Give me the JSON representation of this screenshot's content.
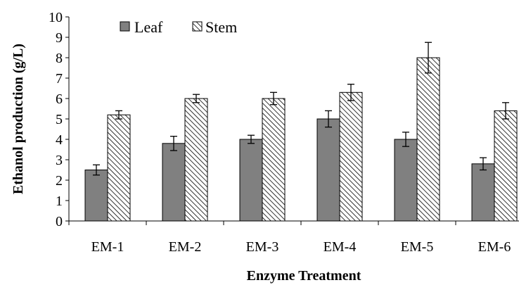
{
  "chart_data": {
    "type": "bar",
    "title": "",
    "xlabel": "Enzyme Treatment",
    "ylabel": "Ethanol production (g/L)",
    "categories": [
      "EM-1",
      "EM-2",
      "EM-3",
      "EM-4",
      "EM-5",
      "EM-6"
    ],
    "ylim": [
      0,
      10
    ],
    "yticks": [
      "0",
      "1",
      "2",
      "3",
      "4",
      "5",
      "6",
      "7",
      "8",
      "9",
      "10"
    ],
    "grid": false,
    "legend_position": "top-left",
    "series": [
      {
        "name": "Leaf",
        "values": [
          2.5,
          3.8,
          4.0,
          5.0,
          4.0,
          2.8
        ],
        "errors": [
          0.25,
          0.35,
          0.2,
          0.4,
          0.35,
          0.3
        ],
        "pattern": "solid",
        "color": "#808080"
      },
      {
        "name": "Stem",
        "values": [
          5.2,
          6.0,
          6.0,
          6.3,
          8.0,
          5.4
        ],
        "errors": [
          0.2,
          0.2,
          0.3,
          0.4,
          0.75,
          0.4
        ],
        "pattern": "hatched",
        "color": "#ffffff"
      }
    ]
  }
}
